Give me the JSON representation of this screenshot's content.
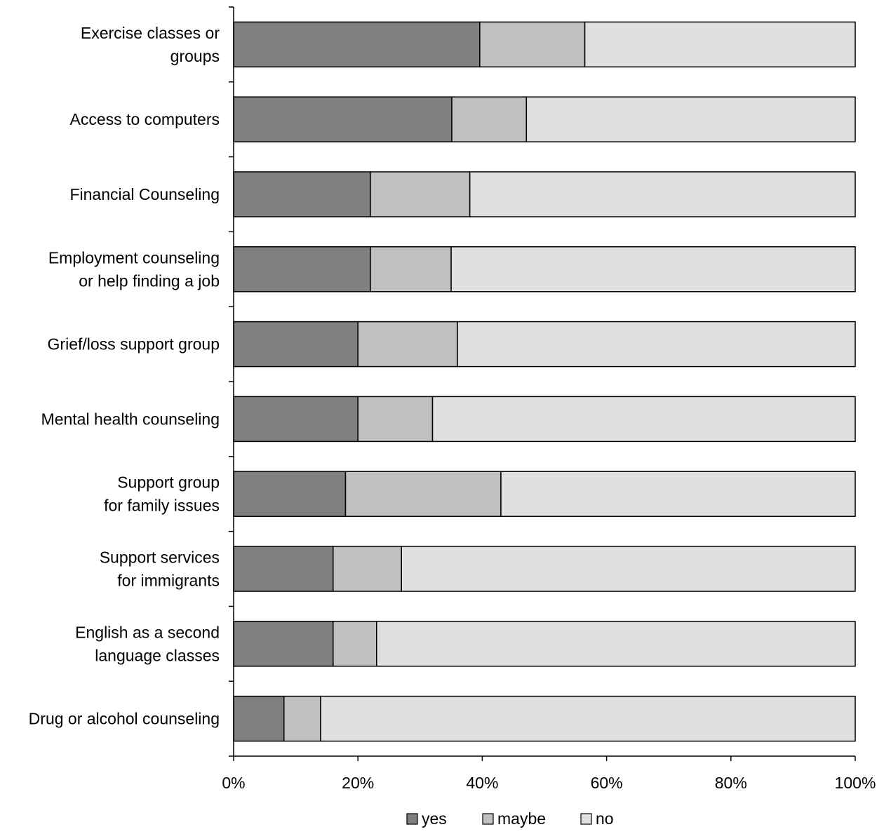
{
  "chart_data": {
    "type": "bar",
    "orientation": "horizontal",
    "stacked": true,
    "percent_stacked": true,
    "title": "",
    "xlabel": "",
    "ylabel": "",
    "categories": [
      [
        "Exercise classes or",
        "groups"
      ],
      [
        "Access to computers"
      ],
      [
        "Financial Counseling"
      ],
      [
        "Employment counseling",
        "or help finding a job"
      ],
      [
        "Grief/loss support group"
      ],
      [
        "Mental health counseling"
      ],
      [
        "Support group",
        "for family issues"
      ],
      [
        "Support services",
        "for immigrants"
      ],
      [
        "English as a second",
        "language classes"
      ],
      [
        "Drug or alcohol counseling"
      ]
    ],
    "series": [
      {
        "name": "yes",
        "color": "#808080",
        "values": [
          39.6,
          35.1,
          22.0,
          22.0,
          20.0,
          20.0,
          18.0,
          16.0,
          16.0,
          8.1
        ]
      },
      {
        "name": "maybe",
        "color": "#c0c0c0",
        "values": [
          16.9,
          12.0,
          16.0,
          13.0,
          16.0,
          12.0,
          25.0,
          11.0,
          7.0,
          5.9
        ]
      },
      {
        "name": "no",
        "color": "#e0e0e0",
        "values": [
          43.5,
          52.9,
          62.0,
          65.0,
          64.0,
          68.0,
          57.0,
          73.0,
          77.0,
          86.0
        ]
      }
    ],
    "xlim": [
      0,
      100
    ],
    "xticks": [
      "0%",
      "20%",
      "40%",
      "60%",
      "80%",
      "100%"
    ],
    "grid": false,
    "legend_position": "bottom"
  }
}
